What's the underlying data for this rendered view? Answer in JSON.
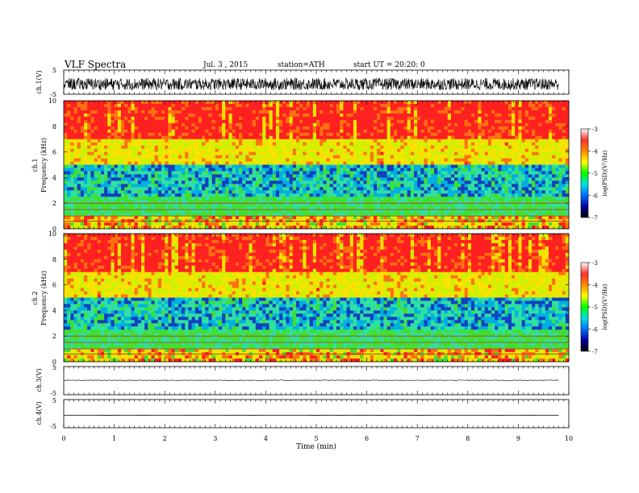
{
  "header": {
    "title": "VLF Spectra",
    "date": "Jul. 3 , 2015",
    "station": "station=ATH",
    "start": "start UT = 20:20: 0"
  },
  "colorbar": {
    "label": "log(PSD)(V²/Hz)",
    "ticks": [
      "-3",
      "-4",
      "-5",
      "-6",
      "-7"
    ],
    "colors": [
      "#ffffff",
      "#ff3030",
      "#ff8800",
      "#ffff00",
      "#00ff00",
      "#00e0e0",
      "#0070ff",
      "#0000a0",
      "#000000"
    ]
  },
  "chart_data": [
    {
      "type": "line",
      "name": "ch1-waveform",
      "ylabel": "ch.1(V)",
      "yticks": [
        "5",
        "-5"
      ],
      "ylim": [
        -5,
        5
      ],
      "note_values": {
        "mean": -0.8,
        "amplitude": 2.5
      }
    },
    {
      "type": "heatmap",
      "name": "ch1-spectrogram",
      "ylabel_channel": "ch.1",
      "ylabel": "Frequency (kHz)",
      "yticks": [
        "0",
        "2",
        "4",
        "6",
        "8",
        "10"
      ],
      "ylim": [
        0,
        10
      ],
      "xlim": [
        0,
        9.8
      ]
    },
    {
      "type": "heatmap",
      "name": "ch2-spectrogram",
      "ylabel_channel": "ch.2",
      "ylabel": "Frequency (kHz)",
      "yticks": [
        "0",
        "2",
        "4",
        "6",
        "8",
        "10"
      ],
      "ylim": [
        0,
        10
      ],
      "xlim": [
        0,
        9.8
      ]
    },
    {
      "type": "line",
      "name": "ch3-waveform",
      "ylabel": "ch.3(V)",
      "yticks": [
        "5",
        "-5"
      ],
      "ylim": [
        -5,
        5
      ],
      "note_values": {
        "mean": 0.1
      }
    },
    {
      "type": "line",
      "name": "ch4-waveform",
      "ylabel": "ch.4(V)",
      "yticks": [
        "5",
        "-5"
      ],
      "ylim": [
        -5,
        5
      ],
      "note_values": {
        "mean": -0.6
      }
    }
  ],
  "xaxis": {
    "label": "Time (min)",
    "ticks": [
      "0",
      "1",
      "2",
      "3",
      "4",
      "5",
      "6",
      "7",
      "8",
      "9",
      "10"
    ],
    "xlim": [
      0,
      10
    ]
  }
}
